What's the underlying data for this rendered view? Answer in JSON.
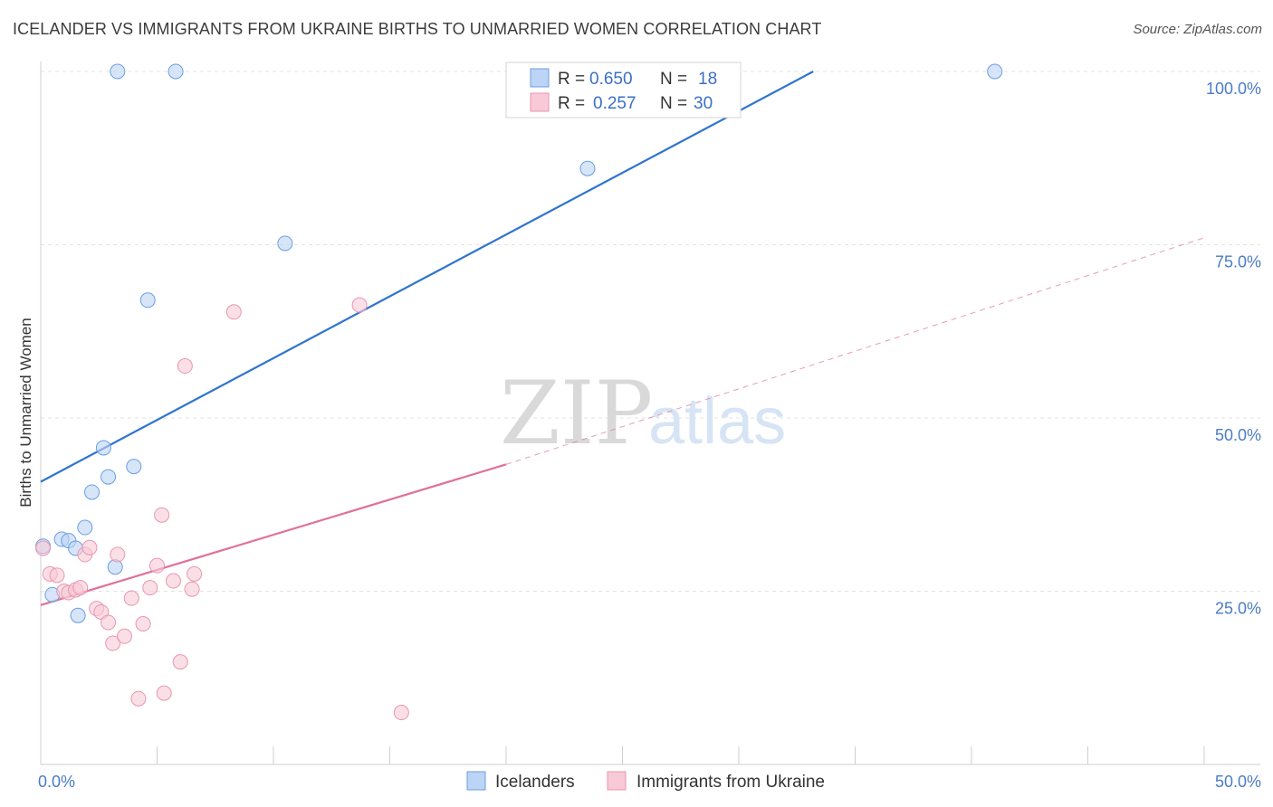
{
  "header": {
    "title": "ICELANDER VS IMMIGRANTS FROM UKRAINE BIRTHS TO UNMARRIED WOMEN CORRELATION CHART",
    "source": "Source: ZipAtlas.com"
  },
  "watermark": {
    "zip": "ZIP",
    "atlas": "atlas"
  },
  "chart_data": {
    "type": "scatter",
    "title": "ICELANDER VS IMMIGRANTS FROM UKRAINE BIRTHS TO UNMARRIED WOMEN CORRELATION CHART",
    "xlabel": "",
    "ylabel": "Births to Unmarried Women",
    "xlim": [
      0,
      50
    ],
    "ylim": [
      0,
      100
    ],
    "x_tick_labels": [
      "0.0%",
      "50.0%"
    ],
    "y_ticks": [
      25,
      50,
      75,
      100
    ],
    "y_tick_labels": [
      "25.0%",
      "50.0%",
      "75.0%",
      "100.0%"
    ],
    "grid": true,
    "legend": {
      "position": "top-center",
      "entries": [
        {
          "r_label": "R =",
          "r_value": "0.650",
          "n_label": "N =",
          "n_value": "18"
        },
        {
          "r_label": "R =",
          "r_value": "0.257",
          "n_label": "N =",
          "n_value": "30"
        }
      ]
    },
    "series": [
      {
        "name": "Icelanders",
        "color": "#6a9ee0",
        "fill": "#bcd4f5",
        "points": [
          [
            0.1,
            31.5
          ],
          [
            0.5,
            24.5
          ],
          [
            0.9,
            32.5
          ],
          [
            1.2,
            32.3
          ],
          [
            1.5,
            31.2
          ],
          [
            1.6,
            21.5
          ],
          [
            1.9,
            34.2
          ],
          [
            2.2,
            39.3
          ],
          [
            2.7,
            45.7
          ],
          [
            2.9,
            41.5
          ],
          [
            3.2,
            28.5
          ],
          [
            4.0,
            43.0
          ],
          [
            4.6,
            67.0
          ],
          [
            3.3,
            100
          ],
          [
            5.8,
            100
          ],
          [
            10.5,
            75.2
          ],
          [
            23.5,
            86.0
          ],
          [
            41.0,
            100
          ]
        ],
        "trendline": {
          "x": [
            0,
            33.2
          ],
          "y": [
            40.8,
            100
          ],
          "style": "solid",
          "color": "#2f74cf"
        }
      },
      {
        "name": "Immigrants from Ukraine",
        "color": "#e896b0",
        "fill": "#f8c9d7",
        "points": [
          [
            0.1,
            31.2
          ],
          [
            0.4,
            27.5
          ],
          [
            0.7,
            27.3
          ],
          [
            1.0,
            25.0
          ],
          [
            1.2,
            24.8
          ],
          [
            1.5,
            25.2
          ],
          [
            1.7,
            25.5
          ],
          [
            1.9,
            30.3
          ],
          [
            2.1,
            31.3
          ],
          [
            2.4,
            22.5
          ],
          [
            2.6,
            22.0
          ],
          [
            2.9,
            20.5
          ],
          [
            3.1,
            17.5
          ],
          [
            3.3,
            30.3
          ],
          [
            3.6,
            18.5
          ],
          [
            3.9,
            24.0
          ],
          [
            4.2,
            9.5
          ],
          [
            4.4,
            20.3
          ],
          [
            4.7,
            25.5
          ],
          [
            5.0,
            28.7
          ],
          [
            5.2,
            36.0
          ],
          [
            5.3,
            10.3
          ],
          [
            5.7,
            26.5
          ],
          [
            6.0,
            14.8
          ],
          [
            6.2,
            57.5
          ],
          [
            6.5,
            25.3
          ],
          [
            6.6,
            27.5
          ],
          [
            8.3,
            65.3
          ],
          [
            13.7,
            66.3
          ],
          [
            15.5,
            7.5
          ]
        ],
        "trendline": {
          "x": [
            0,
            20
          ],
          "y": [
            23.0,
            43.3
          ],
          "style": "solid",
          "color": "#e0719a",
          "dashed_extension": {
            "x": [
              20,
              50
            ],
            "y": [
              43.3,
              76.0
            ]
          }
        }
      }
    ]
  },
  "bottom_legend": {
    "items": [
      {
        "label": "Icelanders",
        "fill": "#bcd4f5",
        "stroke": "#6a9ee0"
      },
      {
        "label": "Immigrants from Ukraine",
        "fill": "#f8c9d7",
        "stroke": "#e896b0"
      }
    ]
  }
}
